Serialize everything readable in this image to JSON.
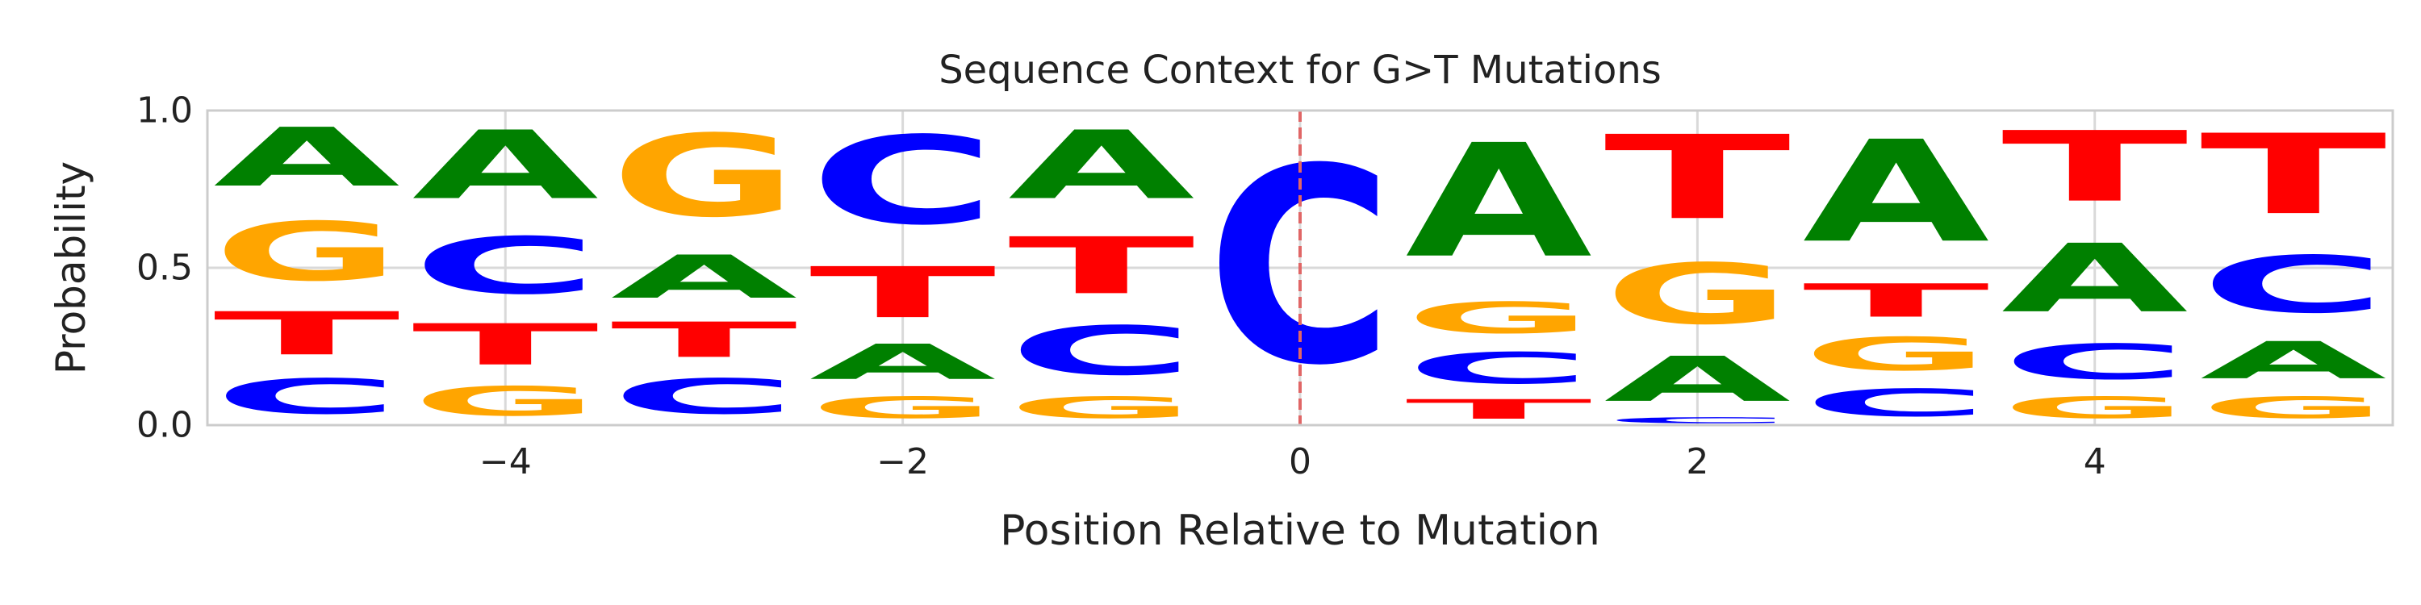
{
  "chart_data": {
    "type": "sequence-logo",
    "title": "Sequence Context for G>T Mutations",
    "xlabel": "Position Relative to Mutation",
    "ylabel": "Probability",
    "xlim": [
      -5.5,
      5.5
    ],
    "ylim": [
      0,
      1
    ],
    "xticks": [
      -4,
      -2,
      0,
      2,
      4
    ],
    "xtick_labels": [
      "−4",
      "−2",
      "0",
      "2",
      "4"
    ],
    "yticks": [
      0,
      0.5,
      1
    ],
    "ytick_labels": [
      "0.0",
      "0.5",
      "1.0"
    ],
    "grid": true,
    "mutation_marker": {
      "position": 0,
      "style": "dashed",
      "color": "#e06666"
    },
    "colors": {
      "A": "#008000",
      "C": "#0000ff",
      "G": "#ffa500",
      "T": "#ff0000"
    },
    "positions": [
      {
        "pos": -5,
        "stack": [
          {
            "base": "C",
            "p": 0.18
          },
          {
            "base": "T",
            "p": 0.22
          },
          {
            "base": "G",
            "p": 0.3
          },
          {
            "base": "A",
            "p": 0.3
          }
        ]
      },
      {
        "pos": -4,
        "stack": [
          {
            "base": "G",
            "p": 0.15
          },
          {
            "base": "T",
            "p": 0.21
          },
          {
            "base": "C",
            "p": 0.29
          },
          {
            "base": "A",
            "p": 0.35
          }
        ]
      },
      {
        "pos": -3,
        "stack": [
          {
            "base": "C",
            "p": 0.18
          },
          {
            "base": "T",
            "p": 0.18
          },
          {
            "base": "A",
            "p": 0.22
          },
          {
            "base": "G",
            "p": 0.42
          }
        ]
      },
      {
        "pos": -2,
        "stack": [
          {
            "base": "G",
            "p": 0.11
          },
          {
            "base": "A",
            "p": 0.18
          },
          {
            "base": "T",
            "p": 0.26
          },
          {
            "base": "C",
            "p": 0.45
          }
        ]
      },
      {
        "pos": -1,
        "stack": [
          {
            "base": "G",
            "p": 0.11
          },
          {
            "base": "C",
            "p": 0.25
          },
          {
            "base": "T",
            "p": 0.29
          },
          {
            "base": "A",
            "p": 0.35
          }
        ]
      },
      {
        "pos": 0,
        "stack": [
          {
            "base": "C",
            "p": 1.0
          }
        ]
      },
      {
        "pos": 1,
        "stack": [
          {
            "base": "T",
            "p": 0.1
          },
          {
            "base": "C",
            "p": 0.16
          },
          {
            "base": "G",
            "p": 0.16
          },
          {
            "base": "A",
            "p": 0.58
          }
        ]
      },
      {
        "pos": 2,
        "stack": [
          {
            "base": "C",
            "p": 0.03
          },
          {
            "base": "A",
            "p": 0.23
          },
          {
            "base": "G",
            "p": 0.31
          },
          {
            "base": "T",
            "p": 0.43
          }
        ]
      },
      {
        "pos": 3,
        "stack": [
          {
            "base": "C",
            "p": 0.14
          },
          {
            "base": "G",
            "p": 0.17
          },
          {
            "base": "T",
            "p": 0.17
          },
          {
            "base": "A",
            "p": 0.52
          }
        ]
      },
      {
        "pos": 4,
        "stack": [
          {
            "base": "G",
            "p": 0.11
          },
          {
            "base": "C",
            "p": 0.18
          },
          {
            "base": "A",
            "p": 0.35
          },
          {
            "base": "T",
            "p": 0.36
          }
        ]
      },
      {
        "pos": 5,
        "stack": [
          {
            "base": "G",
            "p": 0.11
          },
          {
            "base": "A",
            "p": 0.19
          },
          {
            "base": "C",
            "p": 0.29
          },
          {
            "base": "T",
            "p": 0.41
          }
        ]
      }
    ]
  }
}
